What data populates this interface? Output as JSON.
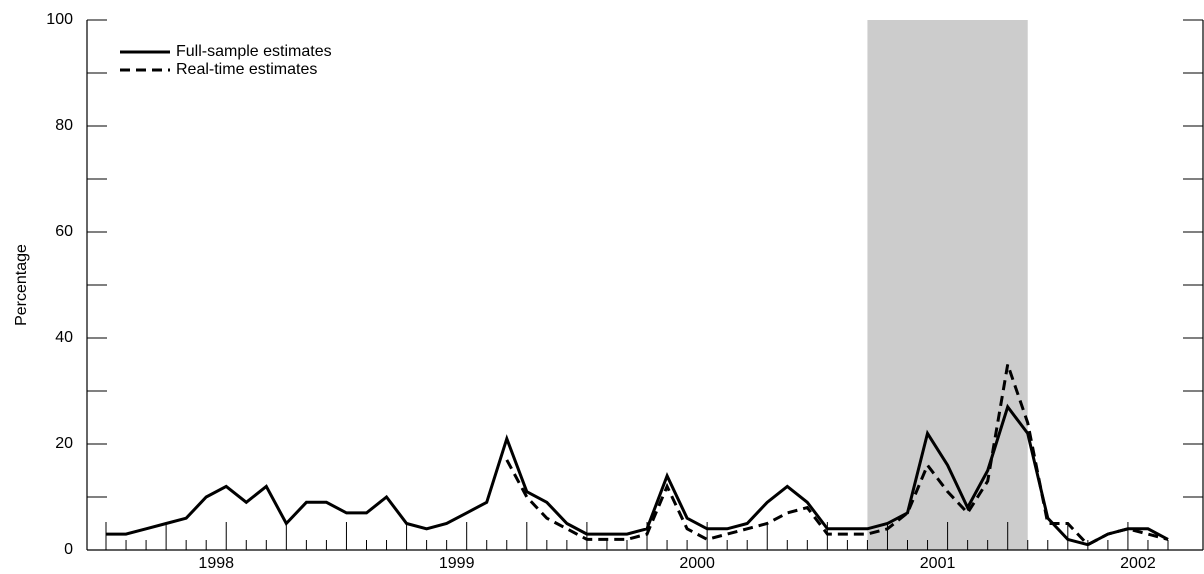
{
  "chart_data": {
    "type": "line",
    "y_label": "Percentage",
    "categories": [
      null,
      null,
      null,
      null,
      null,
      null,
      "1998",
      null,
      null,
      null,
      null,
      null,
      null,
      null,
      null,
      null,
      null,
      null,
      "1999",
      null,
      null,
      null,
      null,
      null,
      null,
      null,
      null,
      null,
      null,
      null,
      "2000",
      null,
      null,
      null,
      null,
      null,
      null,
      null,
      null,
      null,
      null,
      null,
      "2001",
      null,
      null,
      null,
      null,
      null,
      null,
      null,
      null,
      null,
      "2002",
      null
    ],
    "series": [
      {
        "name": "Full-sample estimates",
        "color": "#000000",
        "dash": "solid",
        "values": [
          3,
          3,
          4,
          5,
          6,
          10,
          12,
          9,
          12,
          5,
          9,
          9,
          7,
          7,
          10,
          5,
          4,
          5,
          7,
          9,
          21,
          11,
          9,
          5,
          3,
          3,
          3,
          4,
          14,
          6,
          4,
          4,
          5,
          9,
          12,
          9,
          4,
          4,
          4,
          5,
          7,
          22,
          16,
          8,
          15,
          27,
          22,
          6,
          2,
          1,
          3,
          4,
          4,
          2
        ]
      },
      {
        "name": "Real-time estimates",
        "color": "#000000",
        "dash": "dashed",
        "values": [
          null,
          null,
          null,
          null,
          null,
          null,
          null,
          null,
          null,
          null,
          null,
          null,
          null,
          null,
          null,
          null,
          null,
          null,
          null,
          null,
          17,
          10,
          6,
          4,
          2,
          2,
          2,
          3,
          12,
          4,
          2,
          3,
          4,
          5,
          7,
          8,
          3,
          3,
          3,
          4,
          7,
          16,
          11,
          7,
          13,
          35,
          24,
          5,
          5,
          1,
          3,
          4,
          3,
          2
        ]
      }
    ],
    "shade": {
      "from": 38,
      "to": 46,
      "color": "#cccccc"
    },
    "ylim": [
      0,
      100
    ],
    "yticks": [
      0,
      20,
      40,
      60,
      80,
      100
    ],
    "legend": "top-left"
  }
}
